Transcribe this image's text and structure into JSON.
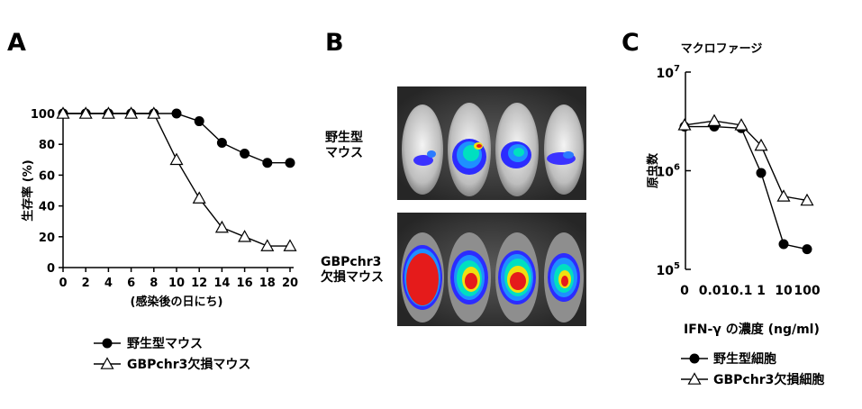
{
  "panels": {
    "a": {
      "letter": "A"
    },
    "b": {
      "letter": "B",
      "row_labels": [
        [
          "野生型",
          "マウス"
        ],
        [
          "GBPchr3",
          "欠損マウス"
        ]
      ]
    },
    "c": {
      "letter": "C"
    }
  },
  "chart_data": [
    {
      "type": "line",
      "panel": "A",
      "title": "",
      "xlabel": "(感染後の日にち)",
      "ylabel": "生存率 (%)",
      "xlim": [
        0,
        20
      ],
      "ylim": [
        0,
        100
      ],
      "x_ticks": [
        "0",
        "2",
        "4",
        "6",
        "8",
        "10",
        "12",
        "14",
        "16",
        "18",
        "20"
      ],
      "y_ticks": [
        "0",
        "20",
        "40",
        "60",
        "80",
        "100"
      ],
      "series": [
        {
          "name": "野生型マウス",
          "marker": "filled-circle",
          "x": [
            0,
            2,
            4,
            6,
            8,
            10,
            12,
            14,
            16,
            18,
            20
          ],
          "y": [
            100,
            100,
            100,
            100,
            100,
            100,
            95,
            81,
            74,
            68,
            68
          ]
        },
        {
          "name": "GBPchr3欠損マウス",
          "marker": "open-triangle",
          "x": [
            0,
            2,
            4,
            6,
            8,
            10,
            12,
            14,
            16,
            18,
            20
          ],
          "y": [
            100,
            100,
            100,
            100,
            100,
            70,
            45,
            26,
            20,
            14,
            14
          ]
        }
      ],
      "legend_position": "bottom"
    },
    {
      "type": "line",
      "panel": "C",
      "title": "マクロファージ",
      "xlabel": "IFN-γ の濃度 (ng/ml)",
      "ylabel": "原虫数",
      "x_ticks": [
        "0",
        "0.01",
        "0.1",
        "1",
        "10",
        "100"
      ],
      "y_scale": "log",
      "ylim": [
        100000,
        10000000
      ],
      "y_tick_base": "10",
      "y_tick_exponents": [
        "7",
        "6",
        "5"
      ],
      "series": [
        {
          "name": "野生型細胞",
          "marker": "filled-circle",
          "x": [
            "0",
            "0.01",
            "0.1",
            "1",
            "10",
            "100"
          ],
          "y": [
            2800000,
            2800000,
            2700000,
            950000,
            180000,
            160000
          ]
        },
        {
          "name": "GBPchr3欠損細胞",
          "marker": "open-triangle",
          "x": [
            "0",
            "0.01",
            "0.1",
            "1",
            "10",
            "100"
          ],
          "y": [
            2900000,
            3200000,
            2900000,
            1800000,
            550000,
            500000
          ]
        }
      ],
      "legend_position": "bottom"
    }
  ]
}
